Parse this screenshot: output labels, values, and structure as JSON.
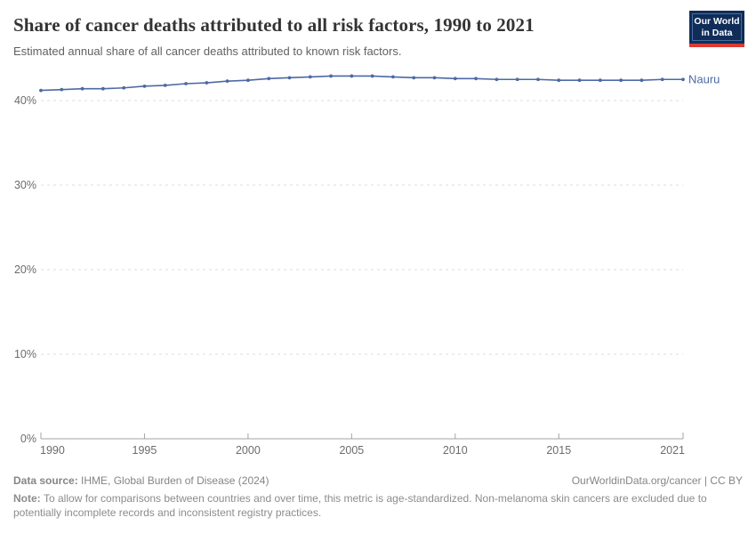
{
  "header": {
    "title": "Share of cancer deaths attributed to all risk factors, 1990 to 2021",
    "subtitle": "Estimated annual share of all cancer deaths attributed to known risk factors.",
    "logo": {
      "line1": "Our World",
      "line2": "in Data"
    }
  },
  "chart_data": {
    "type": "line",
    "title": "Share of cancer deaths attributed to all risk factors, 1990 to 2021",
    "xlabel": "",
    "ylabel": "",
    "x": [
      1990,
      1991,
      1992,
      1993,
      1994,
      1995,
      1996,
      1997,
      1998,
      1999,
      2000,
      2001,
      2002,
      2003,
      2004,
      2005,
      2006,
      2007,
      2008,
      2009,
      2010,
      2011,
      2012,
      2013,
      2014,
      2015,
      2016,
      2017,
      2018,
      2019,
      2020,
      2021
    ],
    "series": [
      {
        "name": "Nauru",
        "color": "#4d69a4",
        "values": [
          41.2,
          41.3,
          41.4,
          41.4,
          41.5,
          41.7,
          41.8,
          42.0,
          42.1,
          42.3,
          42.4,
          42.6,
          42.7,
          42.8,
          42.9,
          42.9,
          42.9,
          42.8,
          42.7,
          42.7,
          42.6,
          42.6,
          42.5,
          42.5,
          42.5,
          42.4,
          42.4,
          42.4,
          42.4,
          42.4,
          42.5,
          42.5
        ]
      }
    ],
    "ylim": [
      0,
      45
    ],
    "yticks": [
      {
        "value": 0,
        "label": "0%"
      },
      {
        "value": 10,
        "label": "10%"
      },
      {
        "value": 20,
        "label": "20%"
      },
      {
        "value": 30,
        "label": "30%"
      },
      {
        "value": 40,
        "label": "40%"
      }
    ],
    "xticks": [
      1990,
      1995,
      2000,
      2005,
      2010,
      2015,
      2021
    ],
    "grid": "horizontal-dashed",
    "legend": "end-of-line-label",
    "colors": {
      "gridline": "#dcdcdc",
      "axis": "#a3a3a3",
      "tick_label": "#6b6b6b"
    }
  },
  "footer": {
    "datasource_label": "Data source: ",
    "datasource_text": "IHME, Global Burden of Disease (2024)",
    "license": "OurWorldinData.org/cancer | CC BY",
    "note_label": "Note: ",
    "note_text": "To allow for comparisons between countries and over time, this metric is age-standardized. Non-melanoma skin cancers are excluded due to potentially incomplete records and inconsistent registry practices."
  }
}
